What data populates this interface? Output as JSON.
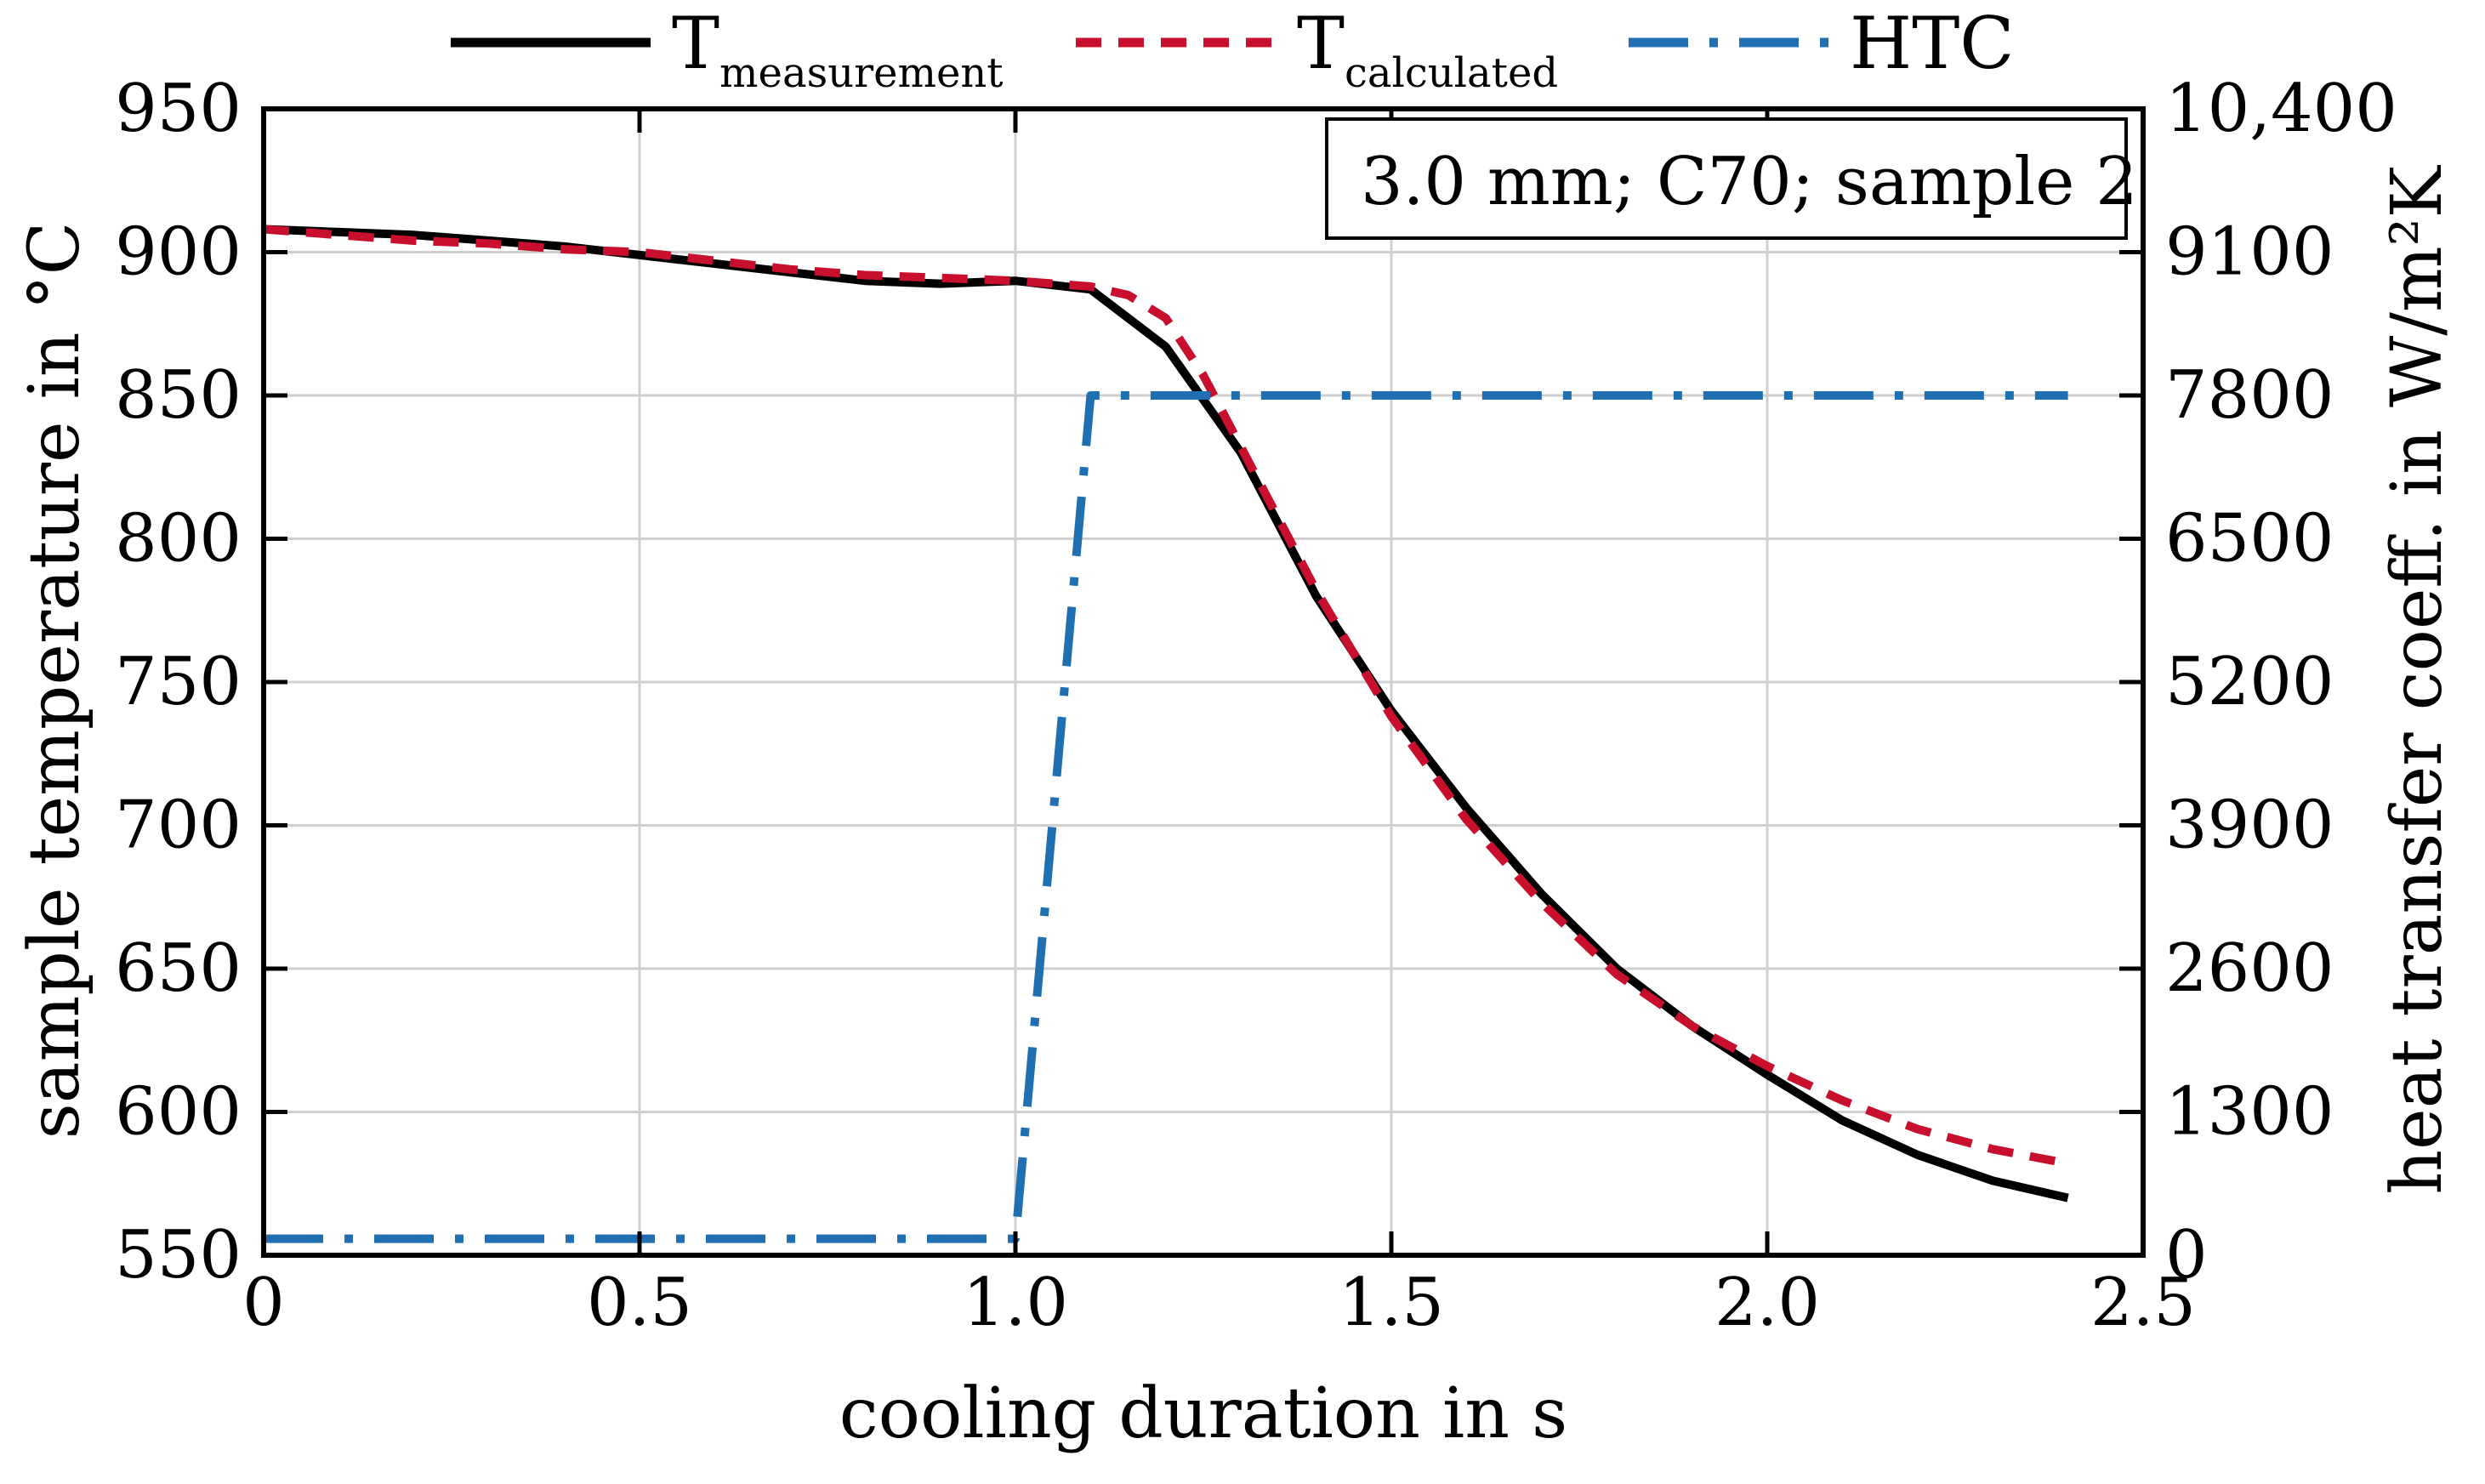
{
  "chart_data": {
    "type": "line",
    "xlabel": "cooling duration in s",
    "ylabel": "sample temperature in °C",
    "y2label": "heat transfer coeff. in W/m²K",
    "xlim": [
      0,
      2.5
    ],
    "ylim": [
      550,
      950
    ],
    "y2lim": [
      0,
      10400
    ],
    "x_ticks": [
      "0",
      "0.5",
      "1.0",
      "1.5",
      "2.0",
      "2.5"
    ],
    "y_ticks": [
      "550",
      "600",
      "650",
      "700",
      "750",
      "800",
      "850",
      "900",
      "950"
    ],
    "y2_ticks": [
      "0",
      "1300",
      "2600",
      "3900",
      "5200",
      "6500",
      "7800",
      "9100",
      "10,400"
    ],
    "grid": true,
    "annotation": "3.0 mm; C70; sample 2",
    "legend": [
      {
        "base": "T",
        "sub": "measurement",
        "style": "solid"
      },
      {
        "base": "T",
        "sub": "calculated",
        "style": "dashed"
      },
      {
        "base": "HTC",
        "sub": "",
        "style": "dash-dot"
      }
    ],
    "series": [
      {
        "name": "T measurement",
        "axis": "left",
        "color": "#000000",
        "x": [
          0,
          0.1,
          0.2,
          0.3,
          0.4,
          0.5,
          0.6,
          0.7,
          0.8,
          0.9,
          1.0,
          1.1,
          1.2,
          1.3,
          1.4,
          1.5,
          1.6,
          1.7,
          1.8,
          1.9,
          2.0,
          2.1,
          2.2,
          2.3,
          2.4
        ],
        "values": [
          908,
          907,
          906,
          904,
          902,
          899,
          896,
          893,
          890,
          889,
          890,
          887,
          867,
          830,
          780,
          740,
          706,
          676,
          650,
          630,
          613,
          597,
          585,
          576,
          570
        ]
      },
      {
        "name": "T calculated",
        "axis": "left",
        "color": "#c8102e",
        "x": [
          0,
          0.1,
          0.2,
          0.3,
          0.4,
          0.5,
          0.6,
          0.7,
          0.8,
          0.9,
          1.0,
          1.1,
          1.15,
          1.2,
          1.25,
          1.3,
          1.4,
          1.5,
          1.6,
          1.7,
          1.8,
          1.9,
          2.0,
          2.1,
          2.2,
          2.3,
          2.4
        ],
        "values": [
          908,
          906,
          904,
          903,
          901,
          900,
          897,
          894,
          892,
          891,
          890,
          888,
          885,
          877,
          857,
          832,
          782,
          738,
          702,
          673,
          648,
          630,
          616,
          604,
          594,
          587,
          582
        ]
      },
      {
        "name": "HTC",
        "axis": "right",
        "color": "#1f6fb2",
        "x": [
          0,
          1.0,
          1.1,
          2.4
        ],
        "values": [
          150,
          150,
          7800,
          7800
        ]
      }
    ]
  }
}
